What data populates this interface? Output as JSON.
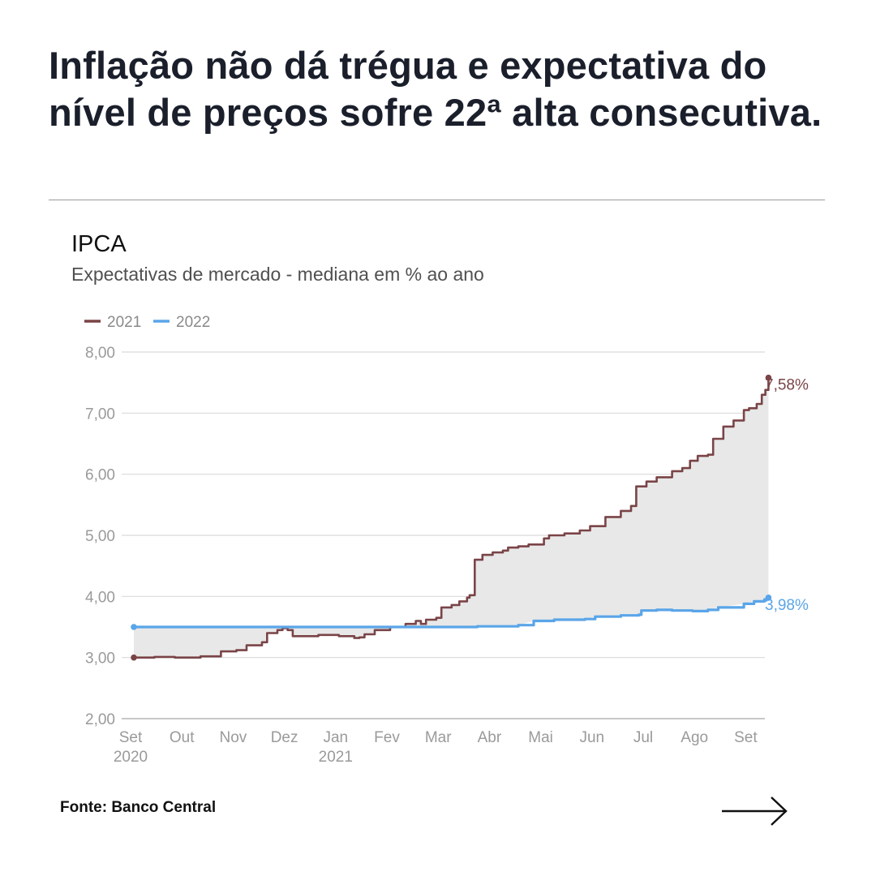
{
  "headline": "Inflação não dá trégua e expectativa do nível de preços sofre 22ª alta consecutiva.",
  "source": "Fonte: Banco Central",
  "next_icon": "arrow-right-icon",
  "chart_data": {
    "type": "area",
    "title": "IPCA",
    "subtitle": "Expectativas de mercado - mediana em % ao ano",
    "xlabel": "",
    "ylabel": "",
    "ylim": [
      2,
      8
    ],
    "y_ticks": [
      "2,00",
      "3,00",
      "4,00",
      "5,00",
      "6,00",
      "7,00",
      "8,00"
    ],
    "x_ticks": [
      {
        "label": "Set",
        "sublabel": "2020",
        "x": 0
      },
      {
        "label": "Out",
        "sublabel": "",
        "x": 1
      },
      {
        "label": "Nov",
        "sublabel": "",
        "x": 2
      },
      {
        "label": "Dez",
        "sublabel": "",
        "x": 3
      },
      {
        "label": "Jan",
        "sublabel": "2021",
        "x": 4
      },
      {
        "label": "Fev",
        "sublabel": "",
        "x": 5
      },
      {
        "label": "Mar",
        "sublabel": "",
        "x": 6
      },
      {
        "label": "Abr",
        "sublabel": "",
        "x": 7
      },
      {
        "label": "Mai",
        "sublabel": "",
        "x": 8
      },
      {
        "label": "Jun",
        "sublabel": "",
        "x": 9
      },
      {
        "label": "Jul",
        "sublabel": "",
        "x": 10
      },
      {
        "label": "Ago",
        "sublabel": "",
        "x": 11
      },
      {
        "label": "Set",
        "sublabel": "",
        "x": 12
      }
    ],
    "xlim": [
      0,
      12
    ],
    "series": [
      {
        "name": "2021",
        "color": "#7a4447",
        "end_label": "7,58%",
        "points": [
          [
            0,
            3.0
          ],
          [
            0.4,
            3.01
          ],
          [
            0.8,
            3.0
          ],
          [
            1.3,
            3.02
          ],
          [
            1.6,
            3.02
          ],
          [
            1.7,
            3.1
          ],
          [
            2.0,
            3.12
          ],
          [
            2.2,
            3.2
          ],
          [
            2.5,
            3.25
          ],
          [
            2.6,
            3.4
          ],
          [
            2.8,
            3.45
          ],
          [
            2.9,
            3.48
          ],
          [
            3.0,
            3.45
          ],
          [
            3.1,
            3.35
          ],
          [
            3.4,
            3.35
          ],
          [
            3.6,
            3.37
          ],
          [
            4.0,
            3.35
          ],
          [
            4.3,
            3.32
          ],
          [
            4.4,
            3.33
          ],
          [
            4.5,
            3.38
          ],
          [
            4.7,
            3.45
          ],
          [
            5.0,
            3.5
          ],
          [
            5.3,
            3.55
          ],
          [
            5.5,
            3.6
          ],
          [
            5.6,
            3.55
          ],
          [
            5.7,
            3.62
          ],
          [
            5.9,
            3.65
          ],
          [
            6.0,
            3.82
          ],
          [
            6.2,
            3.86
          ],
          [
            6.35,
            3.92
          ],
          [
            6.5,
            3.98
          ],
          [
            6.55,
            4.02
          ],
          [
            6.65,
            4.6
          ],
          [
            6.8,
            4.68
          ],
          [
            7.0,
            4.72
          ],
          [
            7.2,
            4.75
          ],
          [
            7.3,
            4.8
          ],
          [
            7.5,
            4.82
          ],
          [
            7.7,
            4.85
          ],
          [
            8.0,
            4.95
          ],
          [
            8.1,
            5.0
          ],
          [
            8.4,
            5.03
          ],
          [
            8.7,
            5.08
          ],
          [
            8.9,
            5.15
          ],
          [
            9.2,
            5.3
          ],
          [
            9.5,
            5.4
          ],
          [
            9.7,
            5.48
          ],
          [
            9.8,
            5.8
          ],
          [
            10.0,
            5.88
          ],
          [
            10.2,
            5.95
          ],
          [
            10.5,
            6.05
          ],
          [
            10.7,
            6.1
          ],
          [
            10.85,
            6.22
          ],
          [
            11.0,
            6.3
          ],
          [
            11.2,
            6.32
          ],
          [
            11.3,
            6.58
          ],
          [
            11.5,
            6.78
          ],
          [
            11.7,
            6.88
          ],
          [
            11.9,
            7.05
          ],
          [
            12.0,
            7.08
          ],
          [
            12.15,
            7.15
          ],
          [
            12.25,
            7.3
          ],
          [
            12.32,
            7.38
          ],
          [
            12.38,
            7.58
          ]
        ]
      },
      {
        "name": "2022",
        "color": "#5aa5e8",
        "end_label": "3,98%",
        "points": [
          [
            0,
            3.5
          ],
          [
            6.0,
            3.5
          ],
          [
            6.3,
            3.5
          ],
          [
            6.7,
            3.51
          ],
          [
            7.0,
            3.51
          ],
          [
            7.5,
            3.53
          ],
          [
            7.8,
            3.6
          ],
          [
            8.2,
            3.62
          ],
          [
            8.8,
            3.63
          ],
          [
            9.0,
            3.67
          ],
          [
            9.5,
            3.69
          ],
          [
            9.85,
            3.7
          ],
          [
            9.9,
            3.77
          ],
          [
            10.2,
            3.78
          ],
          [
            10.5,
            3.77
          ],
          [
            10.9,
            3.76
          ],
          [
            11.2,
            3.78
          ],
          [
            11.4,
            3.82
          ],
          [
            11.9,
            3.88
          ],
          [
            12.1,
            3.92
          ],
          [
            12.3,
            3.95
          ],
          [
            12.38,
            3.98
          ]
        ]
      }
    ],
    "fill_color": "#e8e8e8"
  }
}
